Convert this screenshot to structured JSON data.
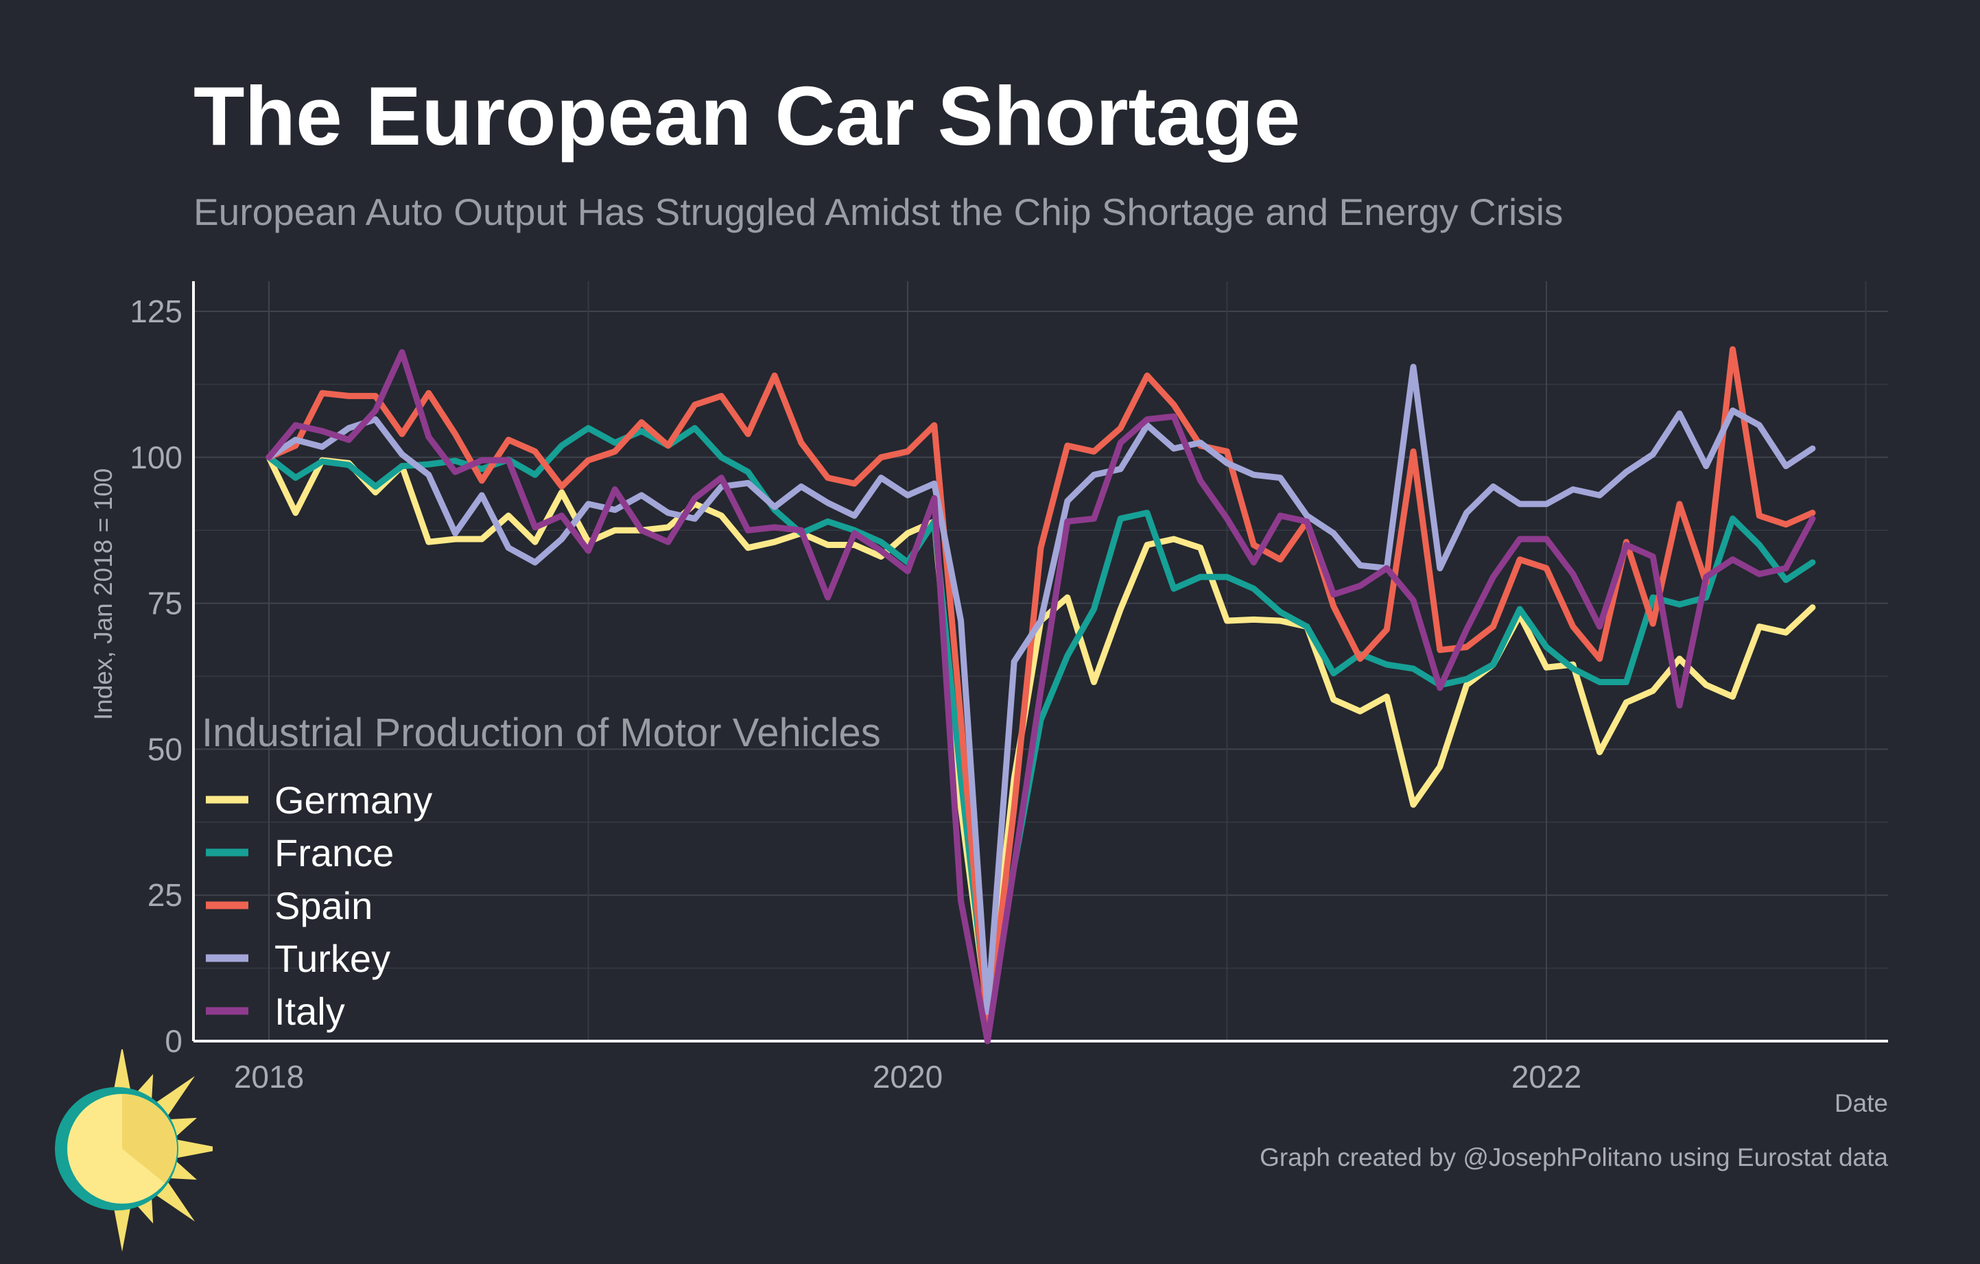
{
  "title": "The European Car Shortage",
  "subtitle": "European Auto Output Has Struggled Amidst the Chip Shortage and Energy Crisis",
  "credit": "Graph created by @JosephPolitano using Eurostat data",
  "logo": {
    "icon": "sun-logo-icon",
    "colors": [
      "#f5df6e",
      "#16a096"
    ]
  },
  "chart_data": {
    "type": "line",
    "title": "The European Car Shortage",
    "subtitle": "European Auto Output Has Struggled Amidst the Chip Shortage and Energy Crisis",
    "xlabel": "Date",
    "ylabel": "Index, Jan 2018 = 100",
    "legend_title": "Industrial Production of Motor Vehicles",
    "legend_position": "bottom-left",
    "grid": true,
    "ylim": [
      0,
      125
    ],
    "yticks": [
      0,
      25,
      50,
      75,
      100,
      125
    ],
    "xlim": [
      "2017-10",
      "2023-01"
    ],
    "xticks": [
      "2018",
      "2020",
      "2022"
    ],
    "x_start": "2018-01",
    "x_frequency": "monthly",
    "series": [
      {
        "name": "Germany",
        "color": "#fde98a",
        "values": [
          100,
          90.5,
          99.5,
          99,
          94,
          98.5,
          85.5,
          86,
          86,
          90,
          85.5,
          94,
          85.5,
          87.5,
          87.5,
          88,
          92,
          90,
          84.5,
          85.5,
          87,
          85,
          85,
          83,
          87,
          89,
          40,
          5,
          45,
          72,
          76,
          61.5,
          74,
          85,
          86,
          84.5,
          72,
          72.2,
          72,
          71,
          58.5,
          56.5,
          59,
          40.5,
          47,
          61,
          64.5,
          73,
          64,
          64.5,
          49.5,
          58,
          60,
          65.5,
          61,
          59,
          71,
          70,
          74.3
        ]
      },
      {
        "name": "France",
        "color": "#16a096",
        "values": [
          100,
          96.5,
          99.3,
          98.7,
          95,
          98.5,
          98.8,
          99.4,
          98,
          99.6,
          97,
          102,
          105,
          102.5,
          104.5,
          102,
          105,
          100,
          97.5,
          91,
          87,
          89,
          87.5,
          85.5,
          82,
          89,
          45,
          4.5,
          30,
          55,
          66,
          74,
          89.5,
          90.5,
          77.5,
          79.5,
          79.5,
          77.5,
          73.5,
          71,
          63,
          66.3,
          64.5,
          63.8,
          61,
          62,
          64.5,
          74,
          67.5,
          63.8,
          61.5,
          61.5,
          76,
          74.8,
          76,
          89.5,
          85,
          79,
          82
        ]
      },
      {
        "name": "Spain",
        "color": "#ee6352",
        "values": [
          100,
          102,
          111,
          110.5,
          110.5,
          104,
          111,
          104,
          96,
          103,
          101,
          95,
          99.5,
          101,
          106,
          102,
          109,
          110.5,
          104,
          114,
          102.5,
          96.5,
          95.5,
          100,
          101,
          105.5,
          55,
          2,
          40,
          84.5,
          102,
          101,
          105,
          114,
          109,
          102,
          101,
          85,
          82.5,
          89,
          74.5,
          65.5,
          70.5,
          101,
          67,
          67.5,
          71,
          82.5,
          81,
          71,
          65.5,
          85.5,
          71.5,
          92,
          78.5,
          118.5,
          90,
          88.5,
          90.5
        ]
      },
      {
        "name": "Turkey",
        "color": "#a3a6d8",
        "values": [
          100,
          103,
          101.8,
          105,
          106.5,
          100.5,
          97,
          87,
          93.5,
          84.5,
          82,
          86,
          92,
          91,
          93.5,
          90.5,
          89.5,
          95,
          95.6,
          91.5,
          95,
          92.2,
          90,
          96.5,
          93.5,
          95.5,
          72,
          5,
          65,
          72,
          92.5,
          97,
          98,
          105.5,
          101.5,
          102.5,
          99,
          97,
          96.5,
          90,
          87,
          81.5,
          81,
          115.5,
          81,
          90.5,
          95,
          92,
          92,
          94.5,
          93.5,
          97.5,
          100.5,
          107.5,
          98.5,
          108,
          105.5,
          98.5,
          101.5
        ]
      },
      {
        "name": "Italy",
        "color": "#8e3b8e",
        "values": [
          100,
          105.5,
          104.5,
          103,
          108,
          118,
          103.5,
          97.5,
          99.5,
          99.5,
          88,
          90,
          84,
          94.5,
          87.5,
          85.5,
          93,
          96.5,
          87.5,
          88,
          87.5,
          76,
          87,
          84,
          80.5,
          93,
          24,
          0,
          30,
          60,
          89,
          89.5,
          102.5,
          106.5,
          107,
          96,
          89.5,
          82,
          90,
          89,
          76.5,
          78,
          81,
          75.5,
          60.5,
          70.5,
          79.5,
          86,
          86,
          80,
          71,
          85,
          83,
          57.5,
          79.5,
          82.5,
          80,
          81,
          89.5
        ]
      }
    ]
  }
}
